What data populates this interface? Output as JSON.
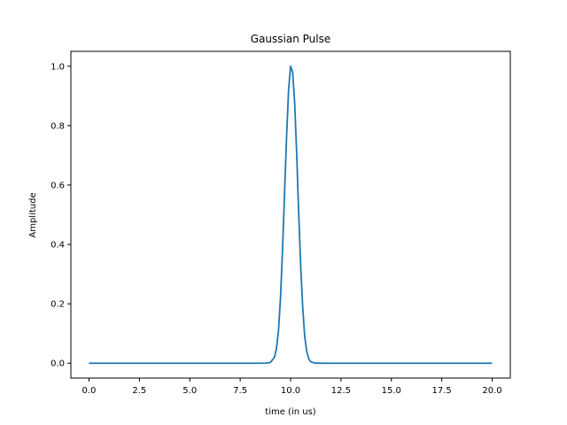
{
  "chart_data": {
    "type": "line",
    "title": "Gaussian Pulse",
    "xlabel": "time (in us)",
    "ylabel": "Amplitude",
    "xlim": [
      -0.9,
      20.9
    ],
    "ylim": [
      -0.05,
      1.05
    ],
    "x_ticks": [
      0,
      2.5,
      5,
      7.5,
      10,
      12.5,
      15,
      17.5,
      20
    ],
    "x_tick_labels": [
      "0.0",
      "2.5",
      "5.0",
      "7.5",
      "10.0",
      "12.5",
      "15.0",
      "17.5",
      "20.0"
    ],
    "y_ticks": [
      0,
      0.2,
      0.4,
      0.6,
      0.8,
      1.0
    ],
    "y_tick_labels": [
      "0.0",
      "0.2",
      "0.4",
      "0.6",
      "0.8",
      "1.0"
    ],
    "grid": false,
    "legend": "none",
    "series": [
      {
        "color": "#1f77b4",
        "x": [
          0,
          1,
          2,
          3,
          4,
          5,
          6,
          7,
          8,
          8.5,
          8.8,
          9.0,
          9.2,
          9.3,
          9.4,
          9.5,
          9.6,
          9.7,
          9.8,
          9.9,
          10.0,
          10.1,
          10.2,
          10.3,
          10.4,
          10.5,
          10.6,
          10.7,
          10.8,
          10.9,
          11.0,
          11.2,
          11.5,
          12,
          13,
          14,
          15,
          16,
          17,
          18,
          19,
          20
        ],
        "y": [
          0,
          0,
          0,
          0,
          0,
          0,
          0,
          0,
          0,
          0.0,
          0.0002,
          0.003,
          0.02,
          0.05,
          0.11,
          0.22,
          0.38,
          0.57,
          0.76,
          0.92,
          1.0,
          0.98,
          0.88,
          0.71,
          0.51,
          0.33,
          0.19,
          0.09,
          0.04,
          0.015,
          0.005,
          0.0005,
          0.0,
          0,
          0,
          0,
          0,
          0,
          0,
          0,
          0,
          0
        ]
      }
    ]
  }
}
